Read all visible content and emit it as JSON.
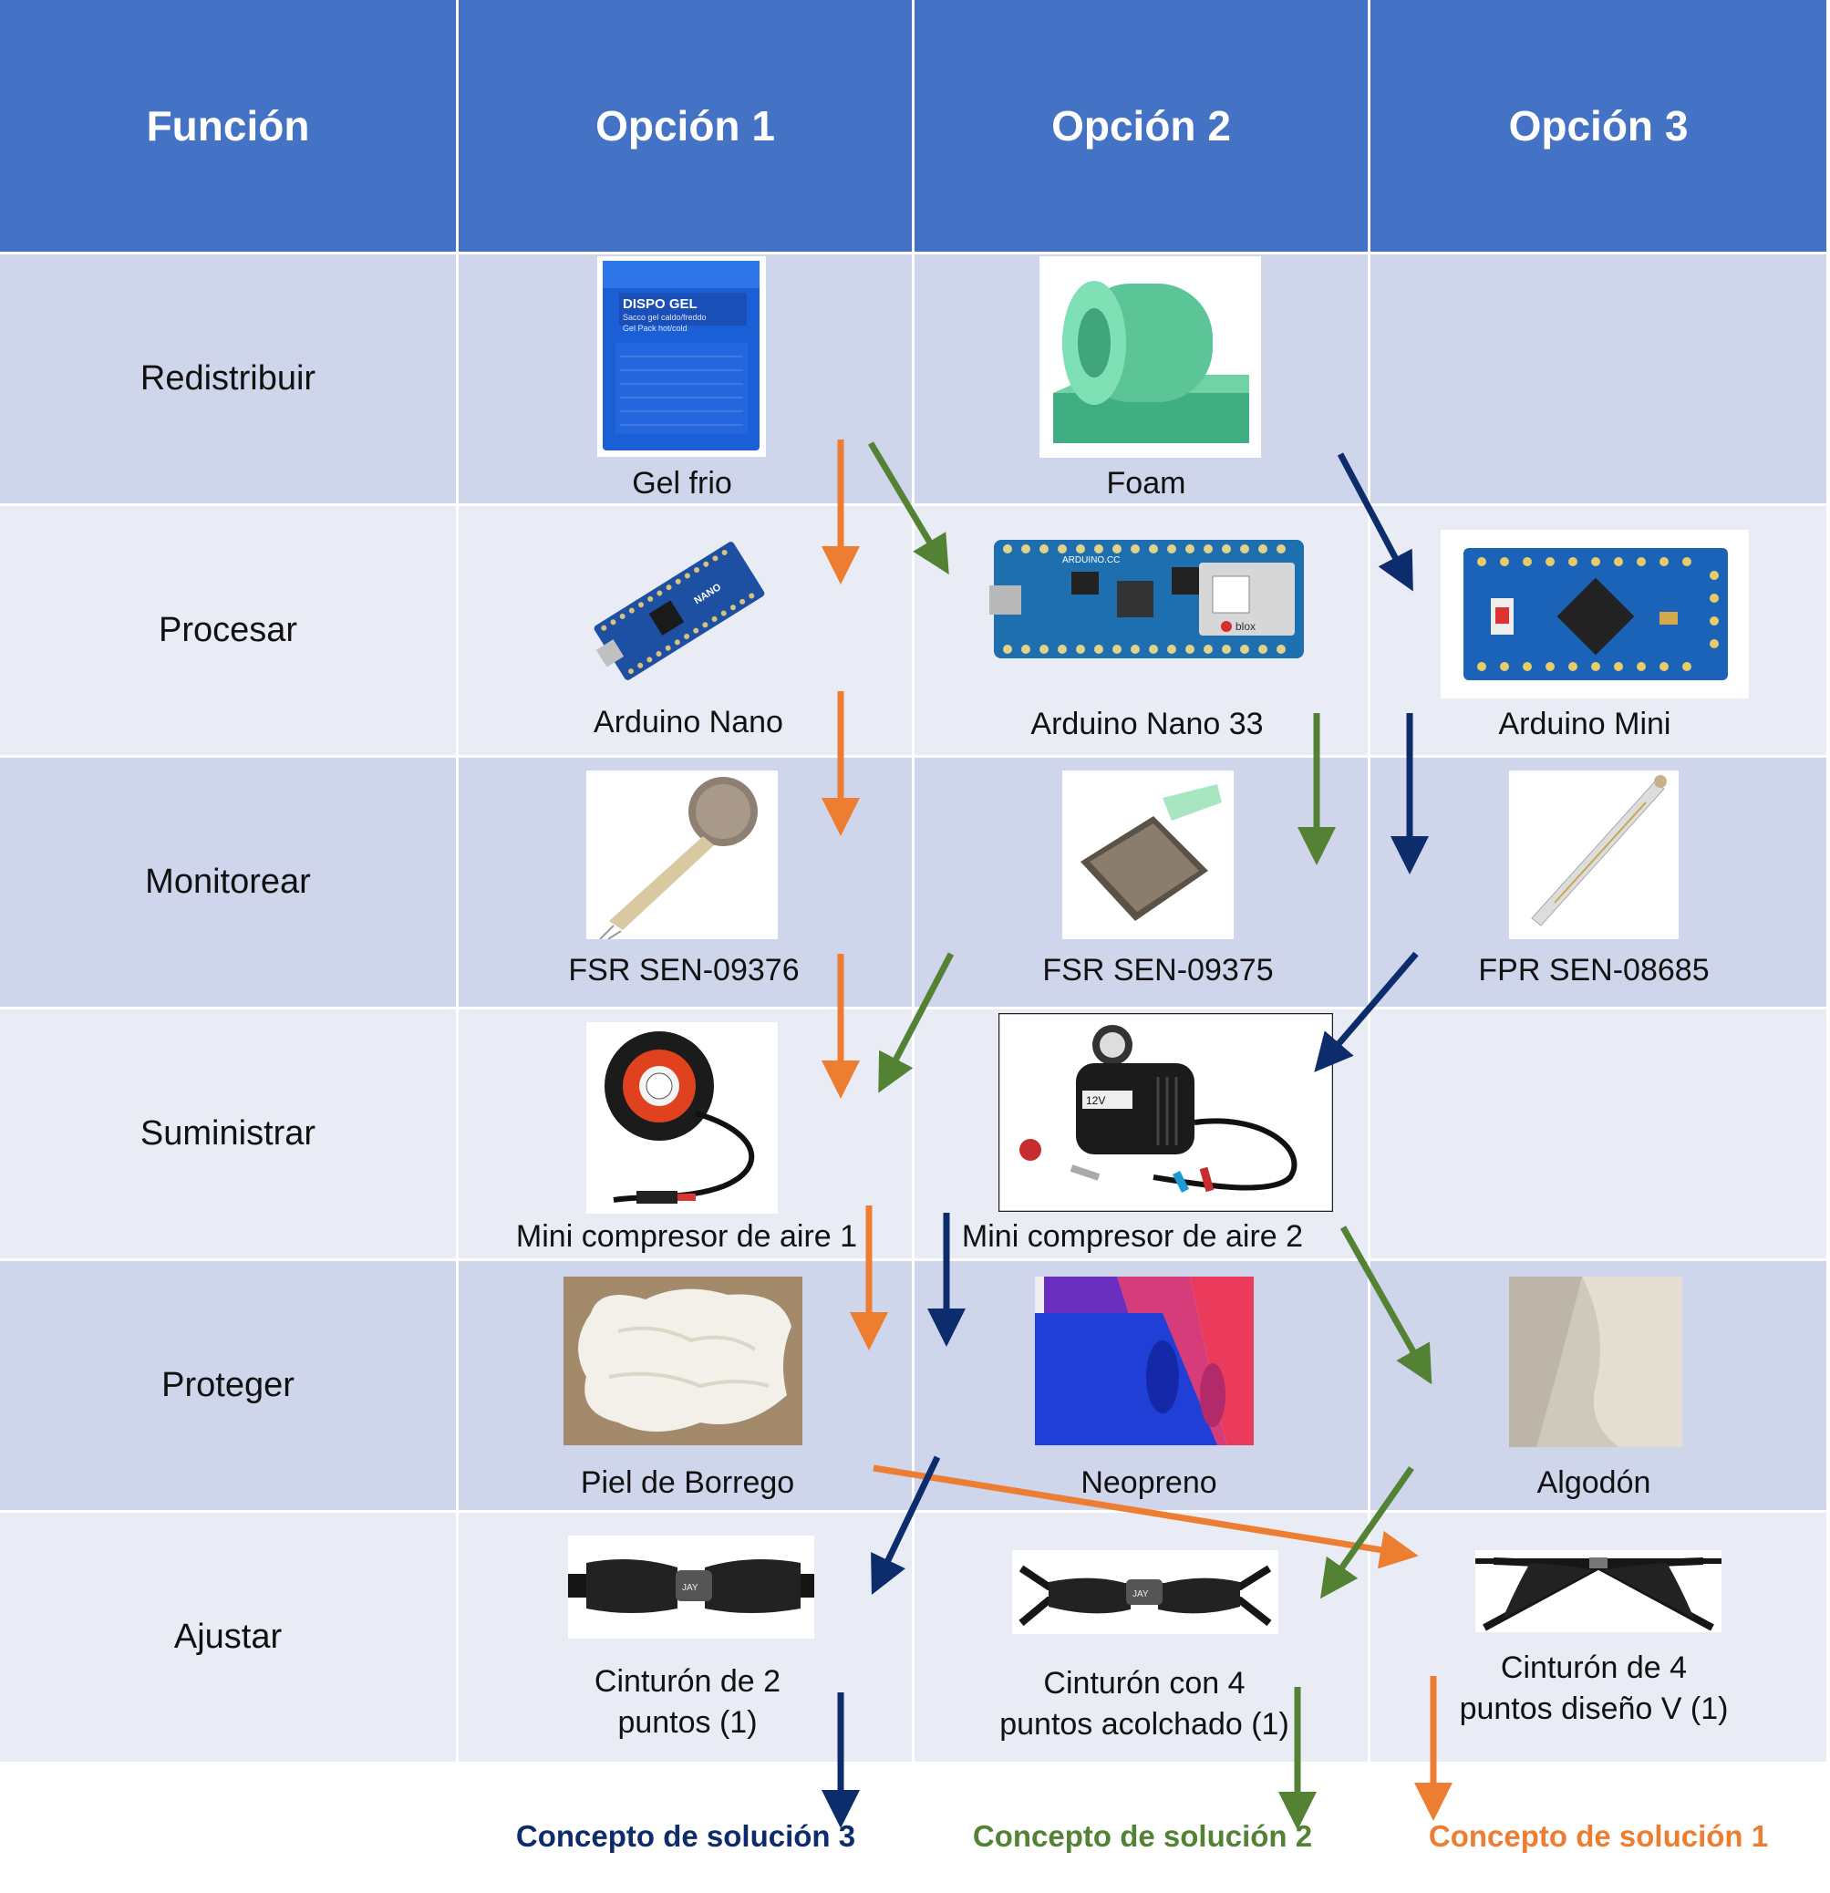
{
  "header": {
    "func": "Función",
    "opt1": "Opción 1",
    "opt2": "Opción 2",
    "opt3": "Opción 3"
  },
  "rows": [
    {
      "func": "Redistribuir",
      "o1": "Gel frio",
      "o2": "Foam",
      "o3": ""
    },
    {
      "func": "Procesar",
      "o1": "Arduino Nano",
      "o2": "Arduino Nano 33",
      "o3": "Arduino Mini"
    },
    {
      "func": "Monitorear",
      "o1": "FSR SEN-09376",
      "o2": "FSR SEN-09375",
      "o3": "FPR SEN-08685"
    },
    {
      "func": "Suministrar",
      "o1": "Mini compresor de aire 1",
      "o2": "Mini compresor de aire 2",
      "o3": ""
    },
    {
      "func": "Proteger",
      "o1": "Piel de Borrego",
      "o2": "Neopreno",
      "o3": "Algodón"
    },
    {
      "func": "Ajustar",
      "o1a": "Cinturón de 2",
      "o1b": "puntos (1)",
      "o2a": "Cinturón con 4",
      "o2b": "puntos acolchado (1)",
      "o3a": "Cinturón de 4",
      "o3b": "puntos diseño V (1)"
    }
  ],
  "gel_pack": {
    "line1": "DISPO GEL",
    "line2": "Sacco gel caldo/freddo",
    "line3": "Gel Pack hot/cold"
  },
  "board_marks": {
    "nano": "NANO",
    "nano33": "ARDUINO.CC",
    "ublox": "blox"
  },
  "compressor_label": "12V",
  "belt_marks": {
    "b2": "JAY",
    "b4": "JAY"
  },
  "concepts": {
    "c3": "Concepto de solución 3",
    "c2": "Concepto de solución 2",
    "c1": "Concepto de solución 1"
  },
  "colors": {
    "orange": "#ed7d31",
    "green": "#548235",
    "navy": "#0d2c6c",
    "header": "#4472c4"
  }
}
